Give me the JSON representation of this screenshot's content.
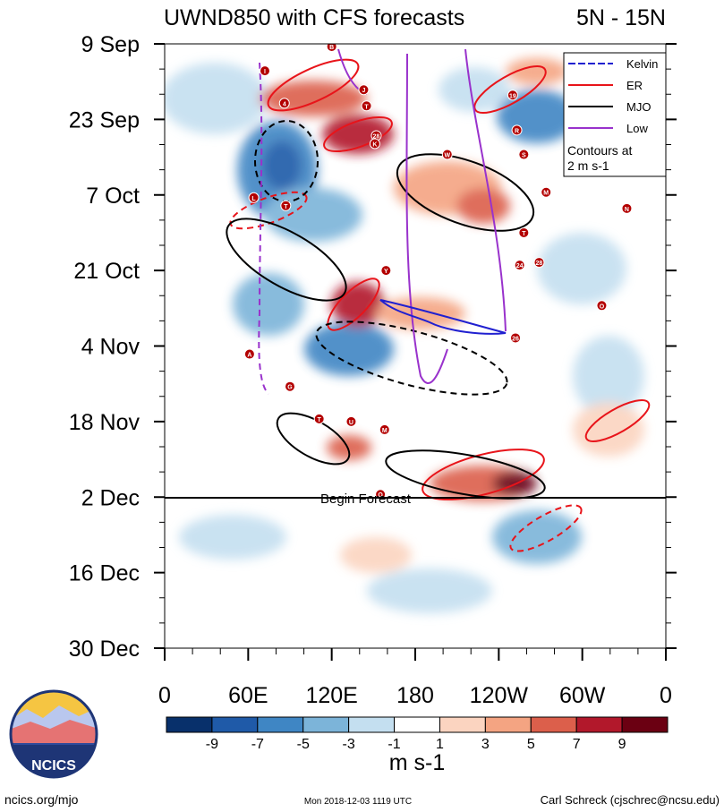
{
  "chart_data": {
    "type": "heatmap",
    "title_left": "UWND850 with CFS forecasts",
    "title_right": "5N - 15N",
    "y_tick_labels": [
      "9 Sep",
      "23 Sep",
      "7 Oct",
      "21 Oct",
      "4 Nov",
      "18 Nov",
      "2 Dec",
      "16 Dec",
      "30 Dec"
    ],
    "y_range_days": [
      0,
      112
    ],
    "x_tick_labels": [
      "0",
      "60E",
      "120E",
      "180",
      "120W",
      "60W",
      "0"
    ],
    "x_range_deg": [
      0,
      360
    ],
    "forecast_line": {
      "label": "Begin Forecast",
      "day": 84
    },
    "colorbar": {
      "labels": [
        "-9",
        "-7",
        "-5",
        "-3",
        "-1",
        "1",
        "3",
        "5",
        "7",
        "9"
      ],
      "colors": [
        "#08306b",
        "#1f5aa8",
        "#3f86c4",
        "#7cb4d9",
        "#c4dff0",
        "#ffffff",
        "#fbd4c0",
        "#f4a482",
        "#dc5f4b",
        "#b2182b",
        "#6b0012"
      ],
      "unit": "m s-1"
    },
    "legend": {
      "entries": [
        {
          "label": "Kelvin",
          "color": "#2020d0",
          "dash": true
        },
        {
          "label": "ER",
          "color": "#e8141a",
          "dash": false
        },
        {
          "label": "MJO",
          "color": "#000000",
          "dash": false
        },
        {
          "label": "Low",
          "color": "#9932cc",
          "dash": false
        }
      ],
      "note_line1": "Contours at",
      "note_line2": "2 m s-1"
    },
    "storms": [
      {
        "label": "B",
        "lon": 120,
        "day": 0.5
      },
      {
        "label": "I",
        "lon": 72,
        "day": 5
      },
      {
        "label": "J",
        "lon": 143,
        "day": 8.5
      },
      {
        "label": "4",
        "lon": 86,
        "day": 11
      },
      {
        "label": "T",
        "lon": 145,
        "day": 11.5
      },
      {
        "label": "19",
        "lon": 250,
        "day": 9.5
      },
      {
        "label": "28",
        "lon": 152,
        "day": 17
      },
      {
        "label": "K",
        "lon": 151,
        "day": 18.5
      },
      {
        "label": "R",
        "lon": 253,
        "day": 16
      },
      {
        "label": "W",
        "lon": 203,
        "day": 20.5
      },
      {
        "label": "S",
        "lon": 258,
        "day": 20.5
      },
      {
        "label": "L",
        "lon": 64,
        "day": 28.5
      },
      {
        "label": "T",
        "lon": 87,
        "day": 30
      },
      {
        "label": "M",
        "lon": 274,
        "day": 27.5
      },
      {
        "label": "N",
        "lon": 332,
        "day": 30.5
      },
      {
        "label": "T",
        "lon": 258,
        "day": 35
      },
      {
        "label": "24",
        "lon": 255,
        "day": 41
      },
      {
        "label": "28",
        "lon": 269,
        "day": 40.5
      },
      {
        "label": "Y",
        "lon": 159,
        "day": 42
      },
      {
        "label": "O",
        "lon": 314,
        "day": 48.5
      },
      {
        "label": "26",
        "lon": 252,
        "day": 54.5
      },
      {
        "label": "A",
        "lon": 61,
        "day": 57.5
      },
      {
        "label": "G",
        "lon": 90,
        "day": 63.5
      },
      {
        "label": "T",
        "lon": 111,
        "day": 69.5
      },
      {
        "label": "U",
        "lon": 134,
        "day": 70
      },
      {
        "label": "M",
        "lon": 158,
        "day": 71.5
      },
      {
        "label": "O",
        "lon": 155,
        "day": 83.5
      }
    ]
  },
  "footer": {
    "logo_text": "NCICS",
    "url": "ncics.org/mjo",
    "timestamp": "Mon 2018-12-03 1119 UTC",
    "author": "Carl Schreck (cjschrec@ncsu.edu)"
  }
}
